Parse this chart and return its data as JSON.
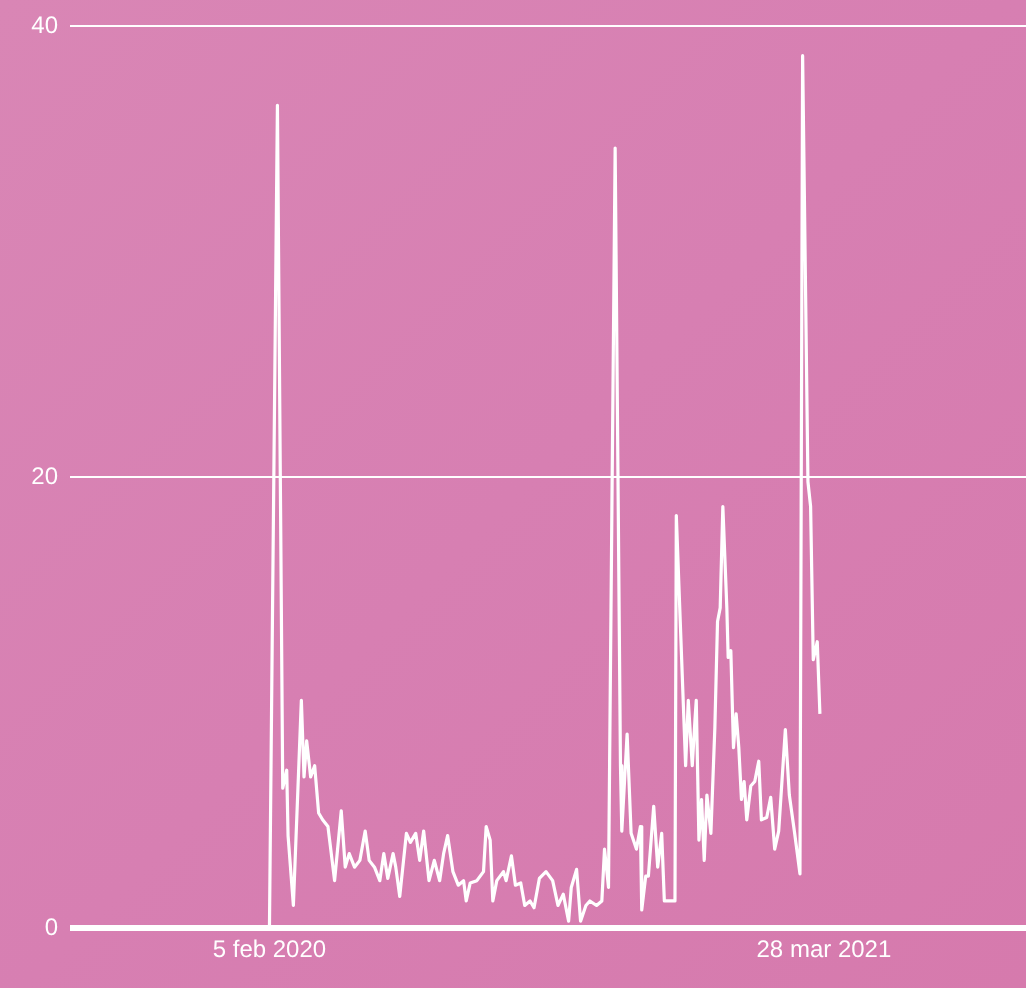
{
  "chart_data": {
    "type": "line",
    "x": [
      "2020-02-05",
      "2020-02-11",
      "2020-02-15",
      "2020-02-18",
      "2020-02-19",
      "2020-02-23",
      "2020-02-29",
      "2020-03-02",
      "2020-03-04",
      "2020-03-07",
      "2020-03-10",
      "2020-03-13",
      "2020-03-16",
      "2020-03-20",
      "2020-03-25",
      "2020-03-30",
      "2020-04-02",
      "2020-04-05",
      "2020-04-09",
      "2020-04-13",
      "2020-04-17",
      "2020-04-20",
      "2020-04-24",
      "2020-04-28",
      "2020-05-01",
      "2020-05-04",
      "2020-05-08",
      "2020-05-10",
      "2020-05-13",
      "2020-05-18",
      "2020-05-21",
      "2020-05-25",
      "2020-05-28",
      "2020-05-31",
      "2020-06-04",
      "2020-06-08",
      "2020-06-12",
      "2020-06-15",
      "2020-06-18",
      "2020-06-22",
      "2020-06-26",
      "2020-06-30",
      "2020-07-02",
      "2020-07-05",
      "2020-07-10",
      "2020-07-15",
      "2020-07-17",
      "2020-07-20",
      "2020-07-22",
      "2020-07-25",
      "2020-07-30",
      "2020-08-01",
      "2020-08-05",
      "2020-08-08",
      "2020-08-12",
      "2020-08-15",
      "2020-08-19",
      "2020-08-22",
      "2020-08-26",
      "2020-08-31",
      "2020-09-05",
      "2020-09-09",
      "2020-09-13",
      "2020-09-17",
      "2020-09-19",
      "2020-09-23",
      "2020-09-26",
      "2020-09-30",
      "2020-10-03",
      "2020-10-08",
      "2020-10-12",
      "2020-10-14",
      "2020-10-17",
      "2020-10-22",
      "2020-10-26",
      "2020-10-27",
      "2020-10-31",
      "2020-11-03",
      "2020-11-07",
      "2020-11-10",
      "2020-11-11",
      "2020-11-14",
      "2020-11-16",
      "2020-11-20",
      "2020-11-23",
      "2020-11-26",
      "2020-11-28",
      "2020-12-06",
      "2020-12-07",
      "2020-12-14",
      "2020-12-16",
      "2020-12-19",
      "2020-12-21",
      "2020-12-22",
      "2020-12-24",
      "2020-12-26",
      "2020-12-28",
      "2020-12-30",
      "2021-01-02",
      "2021-01-05",
      "2021-01-07",
      "2021-01-09",
      "2021-01-11",
      "2021-01-14",
      "2021-01-15",
      "2021-01-17",
      "2021-01-19",
      "2021-01-21",
      "2021-01-23",
      "2021-01-25",
      "2021-01-27",
      "2021-01-29",
      "2021-02-01",
      "2021-02-04",
      "2021-02-07",
      "2021-02-09",
      "2021-02-13",
      "2021-02-16",
      "2021-02-19",
      "2021-02-22",
      "2021-02-27",
      "2021-03-02",
      "2021-03-06",
      "2021-03-10",
      "2021-03-12",
      "2021-03-16",
      "2021-03-18",
      "2021-03-20",
      "2021-03-23",
      "2021-03-25"
    ],
    "series": [
      {
        "color": "#ffffff",
        "values": [
          0,
          36.5,
          6.2,
          7.0,
          4.1,
          1.0,
          10.1,
          6.7,
          8.3,
          6.7,
          7.2,
          5.1,
          4.8,
          4.5,
          2.1,
          5.2,
          2.7,
          3.3,
          2.7,
          3.0,
          4.3,
          3.0,
          2.7,
          2.1,
          3.3,
          2.2,
          3.3,
          2.7,
          1.4,
          4.2,
          3.8,
          4.2,
          3.0,
          4.3,
          2.1,
          3.0,
          2.1,
          3.3,
          4.1,
          2.5,
          1.9,
          2.1,
          1.2,
          2.0,
          2.1,
          2.5,
          4.5,
          3.9,
          1.2,
          2.1,
          2.5,
          2.1,
          3.2,
          1.9,
          2.0,
          1.0,
          1.2,
          0.9,
          2.2,
          2.5,
          2.1,
          1.0,
          1.5,
          0.3,
          1.8,
          2.6,
          0.3,
          1.0,
          1.2,
          1.0,
          1.2,
          3.5,
          1.8,
          34.6,
          7.2,
          4.3,
          8.6,
          4.2,
          3.5,
          4.5,
          0.8,
          2.3,
          2.3,
          5.4,
          2.7,
          4.2,
          1.2,
          1.2,
          18.3,
          7.2,
          10.1,
          7.2,
          9.2,
          10.1,
          3.9,
          5.7,
          3.0,
          5.9,
          4.2,
          8.9,
          13.6,
          14.2,
          18.7,
          14.2,
          12.0,
          12.3,
          8.0,
          9.5,
          8.0,
          5.7,
          6.5,
          4.8,
          6.3,
          6.5,
          7.4,
          4.8,
          4.9,
          5.8,
          3.5,
          4.3,
          8.8,
          5.9,
          4.2,
          2.4,
          38.7,
          19.8,
          18.7,
          11.9,
          12.7,
          9.5
        ]
      }
    ],
    "xlim": [
      "2019-09-08",
      "2021-08-27"
    ],
    "xticks": [
      {
        "value": "2020-02-05",
        "label": "5 feb 2020"
      },
      {
        "value": "2021-03-28",
        "label": "28 mar 2021"
      }
    ],
    "ylim": [
      0,
      40
    ],
    "yticks": [
      0,
      20,
      40
    ],
    "grid": "y",
    "legend": false,
    "marker": "none",
    "line_style": "solid"
  }
}
